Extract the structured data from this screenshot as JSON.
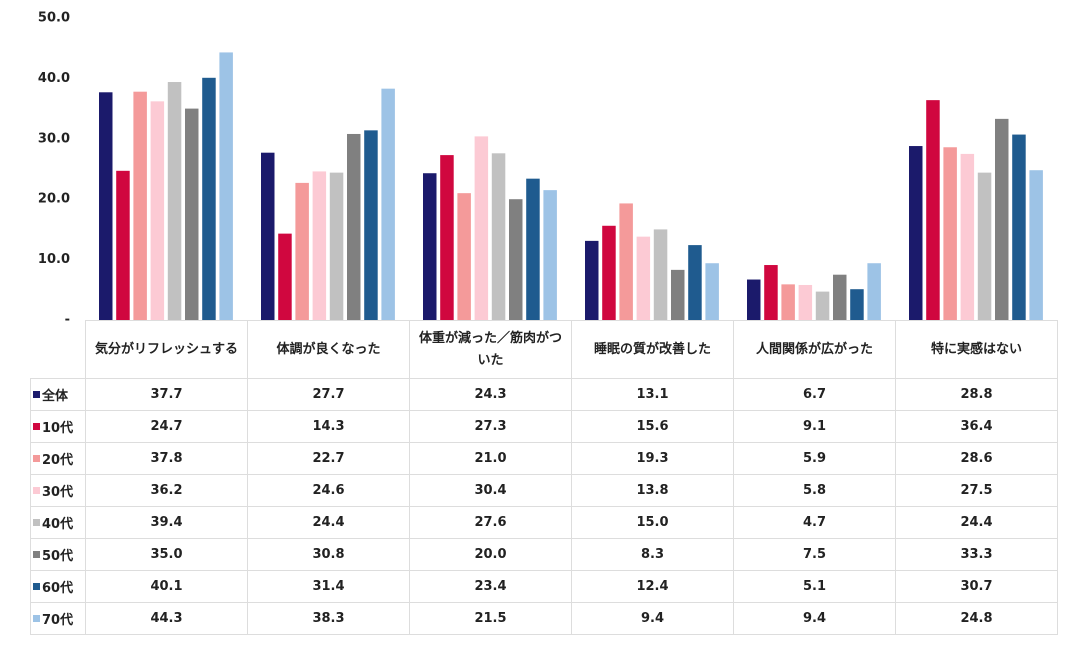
{
  "chart_data": {
    "type": "bar",
    "categories": [
      "気分がリフレッシュする",
      "体調が良くなった",
      "体重が減った／筋肉がついた",
      "睡眠の質が改善した",
      "人間関係が広がった",
      "特に実感はない"
    ],
    "ylim": [
      0,
      50
    ],
    "yticks": [
      {
        "value": 0,
        "label": "-"
      },
      {
        "value": 10,
        "label": "10.0"
      },
      {
        "value": 20,
        "label": "20.0"
      },
      {
        "value": 30,
        "label": "30.0"
      },
      {
        "value": 40,
        "label": "40.0"
      },
      {
        "value": 50,
        "label": "50.0"
      }
    ],
    "series": [
      {
        "name": "全体",
        "color": "#1b1a6b",
        "values": [
          37.7,
          27.7,
          24.3,
          13.1,
          6.7,
          28.8
        ],
        "value_labels": [
          "37.7",
          "27.7",
          "24.3",
          "13.1",
          "6.7",
          "28.8"
        ]
      },
      {
        "name": "10代",
        "color": "#d0073f",
        "values": [
          24.7,
          14.3,
          27.3,
          15.6,
          9.1,
          36.4
        ],
        "value_labels": [
          "24.7",
          "14.3",
          "27.3",
          "15.6",
          "9.1",
          "36.4"
        ]
      },
      {
        "name": "20代",
        "color": "#f49a9a",
        "values": [
          37.8,
          22.7,
          21.0,
          19.3,
          5.9,
          28.6
        ],
        "value_labels": [
          "37.8",
          "22.7",
          "21.0",
          "19.3",
          "5.9",
          "28.6"
        ]
      },
      {
        "name": "30代",
        "color": "#fccad4",
        "values": [
          36.2,
          24.6,
          30.4,
          13.8,
          5.8,
          27.5
        ],
        "value_labels": [
          "36.2",
          "24.6",
          "30.4",
          "13.8",
          "5.8",
          "27.5"
        ]
      },
      {
        "name": "40代",
        "color": "#c1c1c1",
        "values": [
          39.4,
          24.4,
          27.6,
          15.0,
          4.7,
          24.4
        ],
        "value_labels": [
          "39.4",
          "24.4",
          "27.6",
          "15.0",
          "4.7",
          "24.4"
        ]
      },
      {
        "name": "50代",
        "color": "#808080",
        "values": [
          35.0,
          30.8,
          20.0,
          8.3,
          7.5,
          33.3
        ],
        "value_labels": [
          "35.0",
          "30.8",
          "20.0",
          "8.3",
          "7.5",
          "33.3"
        ]
      },
      {
        "name": "60代",
        "color": "#1f5b8f",
        "values": [
          40.1,
          31.4,
          23.4,
          12.4,
          5.1,
          30.7
        ],
        "value_labels": [
          "40.1",
          "31.4",
          "23.4",
          "12.4",
          "5.1",
          "30.7"
        ]
      },
      {
        "name": "70代",
        "color": "#9dc3e6",
        "values": [
          44.3,
          38.3,
          21.5,
          9.4,
          9.4,
          24.8
        ],
        "value_labels": [
          "44.3",
          "38.3",
          "21.5",
          "9.4",
          "9.4",
          "24.8"
        ]
      }
    ]
  }
}
